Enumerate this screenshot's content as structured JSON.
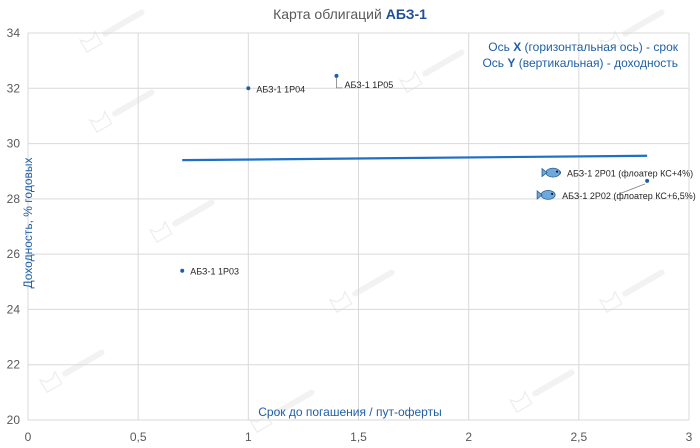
{
  "chart_data": {
    "type": "scatter",
    "title_prefix": "Карта облигаций",
    "title_bold": "АБЗ-1",
    "xlabel": "Срок до погашения / пут-оферты",
    "ylabel": "Доходность, % годовых",
    "xlim": [
      0,
      3
    ],
    "ylim": [
      20,
      34
    ],
    "x_ticks": [
      "0",
      "0,5",
      "1",
      "1,5",
      "2",
      "2,5",
      "3"
    ],
    "y_ticks": [
      "20",
      "22",
      "24",
      "26",
      "28",
      "30",
      "32",
      "34"
    ],
    "grid": true,
    "color": "#1f5fa8",
    "points": [
      {
        "label": "АБЗ-1 1Р04",
        "x": 1.0,
        "y": 32.0,
        "icon": ""
      },
      {
        "label": "АБЗ-1 1Р05",
        "x": 1.4,
        "y": 32.45,
        "icon": ""
      },
      {
        "label": "АБЗ-1 1Р03",
        "x": 0.7,
        "y": 25.4,
        "icon": ""
      },
      {
        "label": "АБЗ-1 2Р01 (флоатер КС+4%)",
        "x": 2.41,
        "y": 28.95,
        "icon": "fish-icon"
      },
      {
        "label": "АБЗ-1 2Р02 (флоатер КС+6,5%)",
        "x": 2.81,
        "y": 28.65,
        "icon": "fish-icon"
      }
    ],
    "trendline": {
      "x": [
        0.7,
        2.81
      ],
      "y": [
        29.4,
        29.56
      ]
    },
    "notes": [
      {
        "prefix": "Ось ",
        "bold": "X",
        "suffix": " (горизонтальная ось) - срок"
      },
      {
        "prefix": "Ось ",
        "bold": "Y",
        "suffix": " (вертикальная) - доходность"
      }
    ],
    "watermark": "Kot.Finance PRO"
  }
}
